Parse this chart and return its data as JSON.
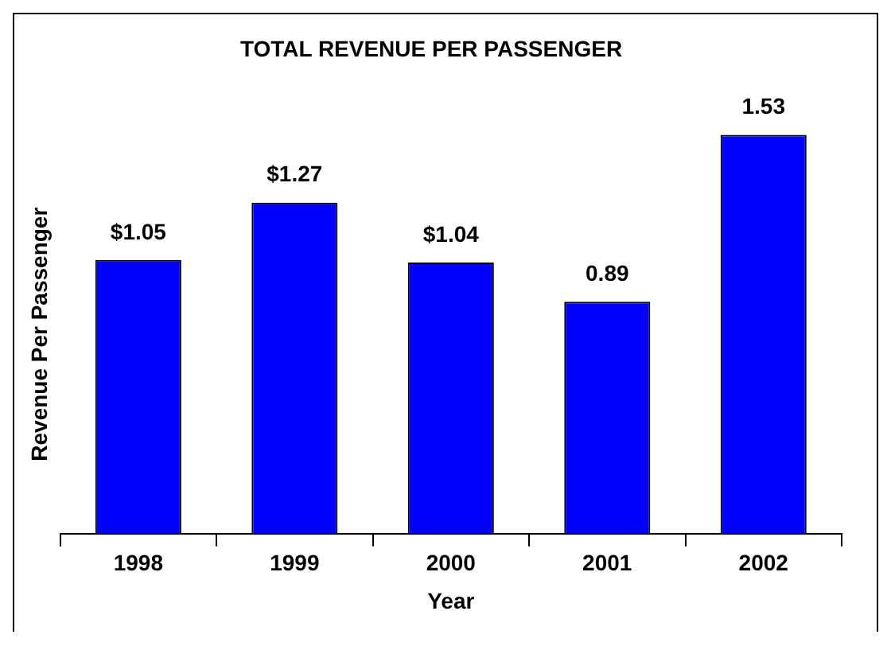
{
  "chart_data": {
    "type": "bar",
    "title": "TOTAL REVENUE PER PASSENGER",
    "xlabel": "Year",
    "ylabel": "Revenue Per Passenger",
    "categories": [
      "1998",
      "1999",
      "2000",
      "2001",
      "2002"
    ],
    "values": [
      1.05,
      1.27,
      1.04,
      0.89,
      1.53
    ],
    "value_labels": [
      "$1.05",
      "$1.27",
      "$1.04",
      "0.89",
      "1.53"
    ],
    "color": "#0000ff",
    "grid": false,
    "legend": false
  }
}
